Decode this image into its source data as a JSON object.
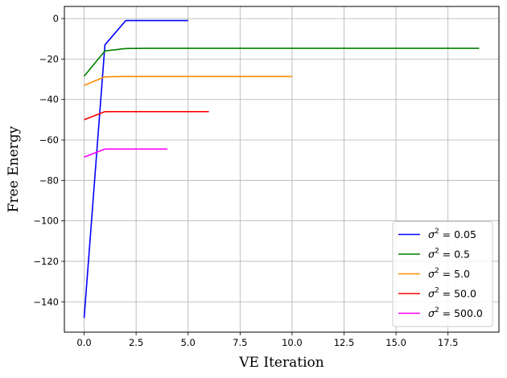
{
  "chart_data": {
    "type": "line",
    "xlabel": "VE Iteration",
    "ylabel": "Free Energy",
    "xlim": [
      -0.95,
      19.95
    ],
    "ylim": [
      -155,
      6
    ],
    "xticks": [
      0.0,
      2.5,
      5.0,
      7.5,
      10.0,
      12.5,
      15.0,
      17.5
    ],
    "xtick_labels": [
      "0.0",
      "2.5",
      "5.0",
      "7.5",
      "10.0",
      "12.5",
      "15.0",
      "17.5"
    ],
    "yticks": [
      0,
      -20,
      -40,
      -60,
      -80,
      -100,
      -120,
      -140
    ],
    "ytick_labels": [
      "0",
      "−20",
      "−40",
      "−60",
      "−80",
      "−100",
      "−120",
      "−140"
    ],
    "grid": true,
    "legend_position": "lower-right",
    "series": [
      {
        "name": "0.05",
        "sigma_symbol": "σ",
        "sup": "2",
        "eq": " = ",
        "color": "#0000ff",
        "x": [
          0,
          1,
          2,
          3,
          4,
          5
        ],
        "y": [
          -148,
          -13,
          -1,
          -1,
          -1,
          -1
        ]
      },
      {
        "name": "0.5",
        "sigma_symbol": "σ",
        "sup": "2",
        "eq": " = ",
        "color": "#008000",
        "x": [
          0,
          1,
          2,
          3,
          4,
          5,
          6,
          7,
          8,
          9,
          10,
          11,
          12,
          13,
          14,
          15,
          16,
          17,
          18,
          19
        ],
        "y": [
          -28.5,
          -16,
          -14.8,
          -14.7,
          -14.7,
          -14.7,
          -14.7,
          -14.7,
          -14.7,
          -14.7,
          -14.7,
          -14.7,
          -14.7,
          -14.7,
          -14.7,
          -14.7,
          -14.7,
          -14.7,
          -14.7,
          -14.7
        ]
      },
      {
        "name": "5.0",
        "sigma_symbol": "σ",
        "sup": "2",
        "eq": " = ",
        "color": "#ff8c00",
        "x": [
          0,
          1,
          2,
          3,
          4,
          5,
          6,
          7,
          8,
          9,
          10
        ],
        "y": [
          -33,
          -28.8,
          -28.6,
          -28.6,
          -28.6,
          -28.6,
          -28.6,
          -28.6,
          -28.6,
          -28.6,
          -28.6
        ]
      },
      {
        "name": "50.0",
        "sigma_symbol": "σ",
        "sup": "2",
        "eq": " = ",
        "color": "#ff0000",
        "x": [
          0,
          1,
          2,
          3,
          4,
          5,
          6
        ],
        "y": [
          -50,
          -46,
          -46,
          -46,
          -46,
          -46,
          -46
        ]
      },
      {
        "name": "500.0",
        "sigma_symbol": "σ",
        "sup": "2",
        "eq": " = ",
        "color": "#ff00ff",
        "x": [
          0,
          1,
          2,
          3,
          4
        ],
        "y": [
          -68.5,
          -64.5,
          -64.5,
          -64.5,
          -64.5
        ]
      }
    ]
  }
}
